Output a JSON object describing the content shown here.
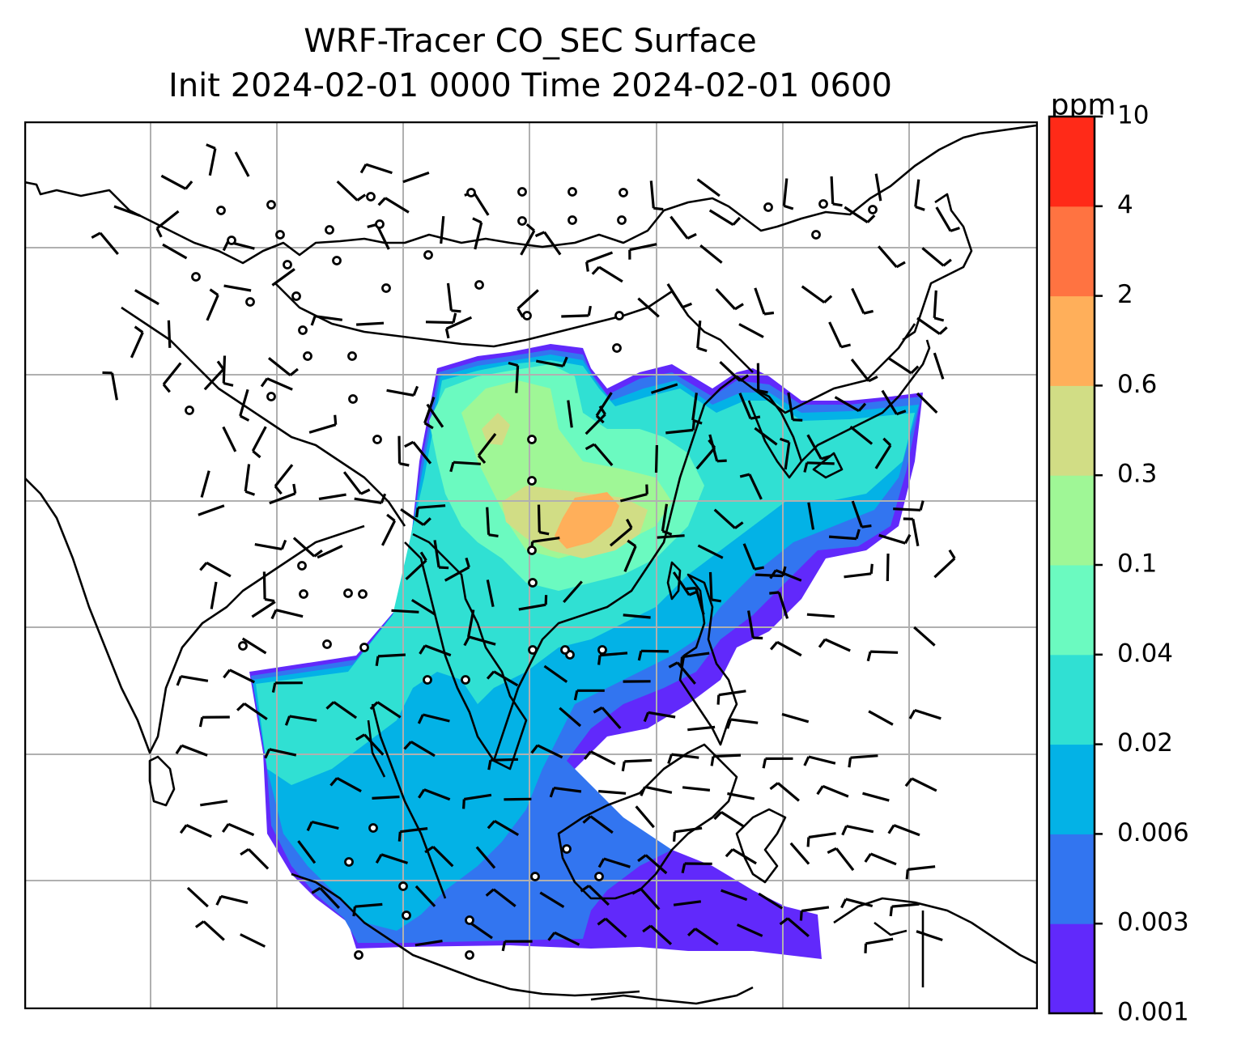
{
  "chart_data": {
    "type": "heatmap",
    "title": "WRF-Tracer CO_SEC Surface",
    "subtitle": "Init 2024-02-01 0000 Time 2024-02-01 0600",
    "variable": "CO_SEC",
    "level": "Surface",
    "init_time": "2024-02-01 0000",
    "valid_time": "2024-02-01 0600",
    "colorbar": {
      "unit": "ppm",
      "levels": [
        "0.001",
        "0.003",
        "0.006",
        "0.02",
        "0.04",
        "0.1",
        "0.3",
        "0.6",
        "2",
        "4",
        "10"
      ],
      "colors": [
        "#6129fb",
        "#3275f0",
        "#03b2e6",
        "#30e0d3",
        "#6bfac0",
        "#9ff796",
        "#d1dd85",
        "#ffaf5a",
        "#ff7341",
        "#ff2a18"
      ]
    },
    "overlays": [
      "coastlines",
      "country borders",
      "lat/lon gridlines",
      "wind barbs",
      "calm-wind circles"
    ],
    "grid": true
  }
}
